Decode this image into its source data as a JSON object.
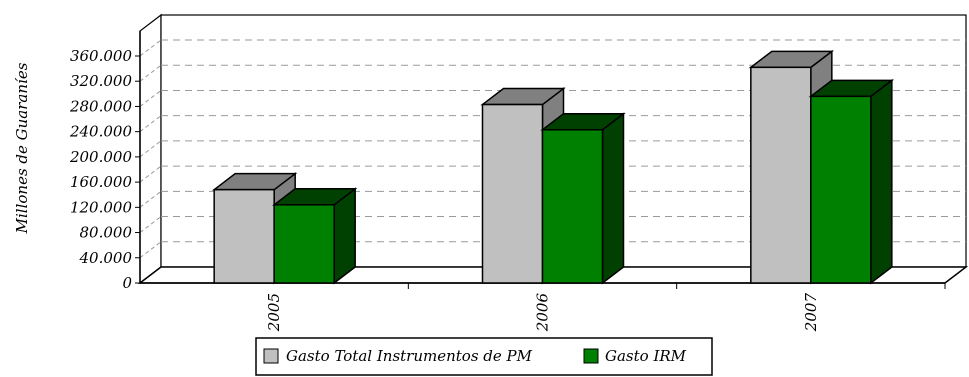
{
  "chart_data": {
    "type": "bar",
    "categories": [
      "2005",
      "2006",
      "2007"
    ],
    "series": [
      {
        "name": "Gasto Total Instrumentos de PM",
        "values": [
          148000,
          283000,
          342000
        ],
        "color": "#c0c0c0",
        "side_color": "#808080"
      },
      {
        "name": "Gasto IRM",
        "values": [
          124000,
          243000,
          296000
        ],
        "color": "#008000",
        "side_color": "#004000"
      }
    ],
    "ylabel": "Millones de Guaraníes",
    "ylim": [
      0,
      360000
    ],
    "yticks": [
      "0",
      "40.000",
      "80.000",
      "120.000",
      "160.000",
      "200.000",
      "240.000",
      "280.000",
      "320.000",
      "360.000"
    ],
    "grid": true,
    "legend": "bottom"
  }
}
